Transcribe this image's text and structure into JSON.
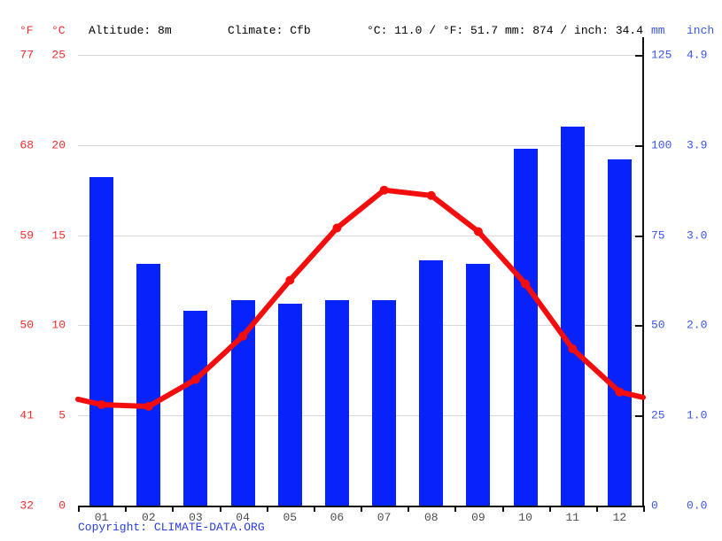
{
  "header": {
    "f_unit": "°F",
    "c_unit": "°C",
    "altitude": "Altitude: 8m",
    "climate": "Climate: Cfb",
    "avg_temp": "°C: 11.0 / °F: 51.7",
    "annual_precip": "mm: 874 / inch: 34.4",
    "mm_unit": "mm",
    "inch_unit": "inch"
  },
  "axes": {
    "left_f": [
      "77",
      "68",
      "59",
      "50",
      "41",
      "32"
    ],
    "left_c": [
      "25",
      "20",
      "15",
      "10",
      "5",
      "0"
    ],
    "right_mm": [
      "125",
      "100",
      "75",
      "50",
      "25",
      "0"
    ],
    "right_inch": [
      "4.9",
      "3.9",
      "3.0",
      "2.0",
      "1.0",
      "0.0"
    ]
  },
  "chart_data": {
    "type": "bar+line",
    "title": "Climate graph (monthly precipitation bars and mean temperature line)",
    "categories": [
      "01",
      "02",
      "03",
      "04",
      "05",
      "06",
      "07",
      "08",
      "09",
      "10",
      "11",
      "12"
    ],
    "series": [
      {
        "name": "Precipitation (mm)",
        "type": "bar",
        "color": "#0624fa",
        "values": [
          91,
          67,
          54,
          57,
          56,
          57,
          57,
          68,
          67,
          99,
          105,
          96
        ]
      },
      {
        "name": "Temperature (°C)",
        "type": "line",
        "color": "#f40d0d",
        "values": [
          5.6,
          5.5,
          7.0,
          9.4,
          12.5,
          15.4,
          17.5,
          17.2,
          15.2,
          12.3,
          8.7,
          6.3
        ],
        "edge_values": [
          5.9,
          6.0
        ]
      }
    ],
    "temp_axis": {
      "unit": "°C",
      "range": [
        0,
        25
      ],
      "ticks": [
        0,
        5,
        10,
        15,
        20,
        25
      ]
    },
    "temp_axis_f": {
      "unit": "°F",
      "ticks": [
        32,
        41,
        50,
        59,
        68,
        77
      ]
    },
    "precip_axis": {
      "unit": "mm",
      "range": [
        0,
        125
      ],
      "ticks": [
        0,
        25,
        50,
        75,
        100,
        125
      ]
    },
    "precip_axis_inch": {
      "unit": "inch",
      "ticks": [
        0.0,
        1.0,
        2.0,
        3.0,
        3.9,
        4.9
      ]
    },
    "grid": true,
    "legend_position": "none"
  },
  "footer": {
    "copyright": "Copyright: CLIMATE-DATA.ORG"
  },
  "colors": {
    "bar_blue": "#0624fa",
    "line_red": "#f40d0d",
    "red_text": "#f02c2c",
    "blue_text": "#3b55e8",
    "link_blue": "#2940d9",
    "month_text": "#4d4d4d",
    "grid": "#d8d8d8",
    "axis": "#111111"
  }
}
